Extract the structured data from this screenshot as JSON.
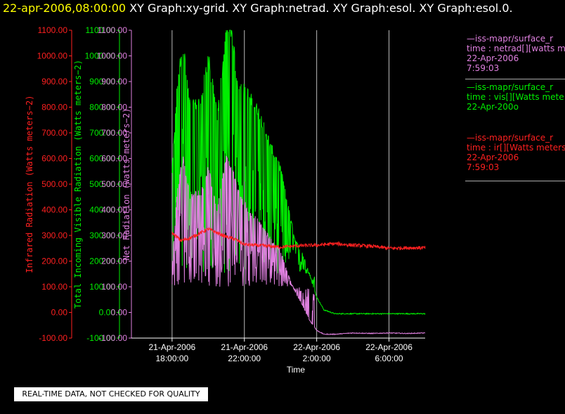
{
  "header": {
    "timestamp": "22-apr-2006,08:00:00",
    "graphs": "XY Graph:xy-grid.  XY Graph:netrad.  XY Graph:esol.  XY Graph:esol.0."
  },
  "colors": {
    "ir": "#ff2020",
    "vis": "#00ee00",
    "net": "#e080e0",
    "grid": "#bbbbbb",
    "axis": "#ffffff"
  },
  "legend": {
    "netrad": {
      "line1": "—iss-mapr/surface_r",
      "line2": "time : netrad[][watts m",
      "line3": "22-Apr-2006",
      "line4": "7:59:03"
    },
    "vis": {
      "line1": "—iss-mapr/surface_r",
      "line2": "time : vis[][Watts mete",
      "line3": "22-Apr-200o"
    },
    "ir": {
      "line1": "—iss-mapr/surface_r",
      "line2": "time : ir[][Watts meters",
      "line3": "22-Apr-2006",
      "line4": "7:59:03"
    }
  },
  "disclaimer": "REAL-TIME DATA, NOT CHECKED FOR QUALITY",
  "chart_data": {
    "type": "line",
    "xlabel": "Time",
    "x_tick_labels": [
      [
        "21-Apr-2006",
        "18:00:00"
      ],
      [
        "21-Apr-2006",
        "22:00:00"
      ],
      [
        "22-Apr-2006",
        "2:00:00"
      ],
      [
        "22-Apr-2006",
        "6:00:00"
      ]
    ],
    "x_hours_ticks": [
      0,
      4,
      8,
      12
    ],
    "xlim_hours": [
      -0.15,
      14.0
    ],
    "axes": [
      {
        "label": "Infrared Radiation (Watts meters−2)",
        "color": "#ff2020",
        "ylim": [
          -100,
          1100
        ]
      },
      {
        "label": "Total Incoming Visible Radiation (Watts meters−2)",
        "color": "#00ee00",
        "ylim": [
          -100,
          1100
        ]
      },
      {
        "label": "Net Radiation (watts meters−2)",
        "color": "#e080e0",
        "ylim": [
          -100,
          1100
        ]
      }
    ],
    "y_tick_labels": [
      "-100.00",
      "0.00",
      "100.00",
      "200.00",
      "300.00",
      "400.00",
      "500.00",
      "600.00",
      "700.00",
      "800.00",
      "900.00",
      "1000.00",
      "1100.00"
    ],
    "grid": true,
    "series": [
      {
        "name": "vis",
        "color": "#00ee00",
        "noise": [
          0,
          4
        ],
        "x": [
          0,
          0.3,
          0.6,
          1.0,
          1.6,
          2.0,
          2.5,
          3.0,
          3.3,
          3.6,
          4.2,
          4.8,
          5.2,
          5.6,
          6.0,
          6.4,
          6.8,
          7.2,
          7.6,
          8.0,
          8.4,
          9.0,
          10.0,
          11.0,
          12.0,
          13.0,
          14.0
        ],
        "y": [
          550,
          900,
          1050,
          800,
          820,
          1000,
          760,
          1090,
          1100,
          900,
          850,
          780,
          700,
          620,
          560,
          420,
          280,
          230,
          150,
          60,
          10,
          -5,
          -5,
          -5,
          -5,
          -5,
          -5
        ],
        "spikes": {
          "from": 0,
          "to": 7.9,
          "lo_frac": 0.35
        }
      },
      {
        "name": "netrad",
        "color": "#e080e0",
        "noise": [
          0,
          3
        ],
        "x": [
          0,
          0.3,
          0.6,
          1.0,
          1.6,
          2.0,
          2.5,
          3.0,
          3.3,
          3.6,
          4.2,
          4.8,
          5.2,
          5.6,
          6.0,
          6.4,
          6.8,
          7.2,
          7.6,
          8.0,
          8.4,
          9.0,
          10.0,
          11.0,
          12.0,
          13.0,
          14.0
        ],
        "y": [
          180,
          480,
          600,
          450,
          470,
          560,
          400,
          600,
          560,
          480,
          400,
          350,
          310,
          270,
          240,
          150,
          80,
          30,
          -30,
          -70,
          -85,
          -85,
          -80,
          -82,
          -80,
          -82,
          -80
        ],
        "spikes": {
          "from": 0,
          "to": 7.9,
          "lo_frac": 0.35
        }
      },
      {
        "name": "ir",
        "color": "#ff2020",
        "noise": [
          8,
          6
        ],
        "x": [
          0,
          0.5,
          1.0,
          2.0,
          2.5,
          3.0,
          3.5,
          4.0,
          5.0,
          6.0,
          7.0,
          8.0,
          9.0,
          10.0,
          11.0,
          12.0,
          13.0,
          14.0
        ],
        "y": [
          310,
          280,
          290,
          325,
          310,
          295,
          285,
          265,
          260,
          255,
          260,
          262,
          268,
          262,
          258,
          250,
          252,
          252
        ],
        "spikes": null
      }
    ]
  }
}
